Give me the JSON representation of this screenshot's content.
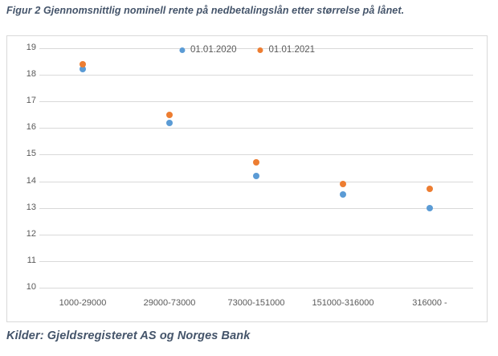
{
  "title": "Figur 2 Gjennomsnittlig nominell rente på nedbetalingslån etter størrelse på lånet.",
  "footer": "Kilder: Gjeldsregisteret AS og Norges Bank",
  "colors": {
    "caption_text": "#44546A",
    "tick_label": "#595959",
    "legend_label": "#595959",
    "gridline": "#d9d9d9",
    "chart_border": "#d9d9d9",
    "series_2020": "#5B9BD5",
    "series_2021": "#ED7D31"
  },
  "chart_data": {
    "type": "scatter",
    "title": "",
    "xlabel": "",
    "ylabel": "",
    "categories": [
      "1000-29000",
      "29000-73000",
      "73000-151000",
      "151000-316000",
      "316000 -"
    ],
    "series": [
      {
        "name": "01.01.2020",
        "color": "#5B9BD5",
        "values": [
          18.2,
          16.2,
          14.2,
          13.5,
          13.0
        ]
      },
      {
        "name": "01.01.2021",
        "color": "#ED7D31",
        "values": [
          18.4,
          16.5,
          14.7,
          13.9,
          13.7
        ]
      }
    ],
    "ylim": [
      10,
      19
    ],
    "yticks": [
      10,
      11,
      12,
      13,
      14,
      15,
      16,
      17,
      18,
      19
    ],
    "grid": true,
    "legend_position": "top-center"
  }
}
